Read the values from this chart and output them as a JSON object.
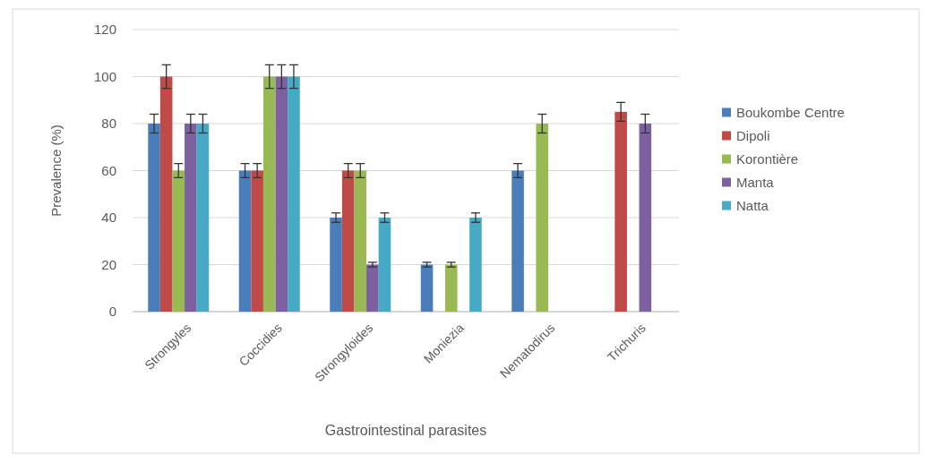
{
  "chart_data": {
    "type": "bar",
    "xlabel": "Gastrointestinal parasites",
    "ylabel": "Prevalence (%)",
    "categories": [
      "Strongyles",
      "Coccidies",
      "Strongyloides",
      "Moniezia",
      "Nematodirus",
      "Trichuris"
    ],
    "series": [
      {
        "name": "Boukombe Centre",
        "color": "#4a7ebb",
        "values": [
          80,
          60,
          40,
          20,
          60,
          null
        ],
        "errors": [
          4,
          3,
          2,
          1,
          3,
          null
        ]
      },
      {
        "name": "Dipoli",
        "color": "#be4b48",
        "values": [
          100,
          60,
          60,
          null,
          null,
          85
        ],
        "errors": [
          5,
          3,
          3,
          null,
          null,
          4
        ]
      },
      {
        "name": "Korontière",
        "color": "#98b954",
        "values": [
          60,
          100,
          60,
          20,
          80,
          null
        ],
        "errors": [
          3,
          5,
          3,
          1,
          4,
          null
        ]
      },
      {
        "name": "Manta",
        "color": "#7d60a0",
        "values": [
          80,
          100,
          20,
          null,
          null,
          80
        ],
        "errors": [
          4,
          5,
          1,
          null,
          null,
          4
        ]
      },
      {
        "name": "Natta",
        "color": "#46aac5",
        "values": [
          80,
          100,
          40,
          40,
          null,
          null
        ],
        "errors": [
          4,
          5,
          2,
          2,
          null,
          null
        ]
      }
    ],
    "ylim": [
      0,
      120
    ],
    "yticks": [
      0,
      20,
      40,
      60,
      80,
      100,
      120
    ],
    "grid": "y",
    "legend": "right"
  }
}
